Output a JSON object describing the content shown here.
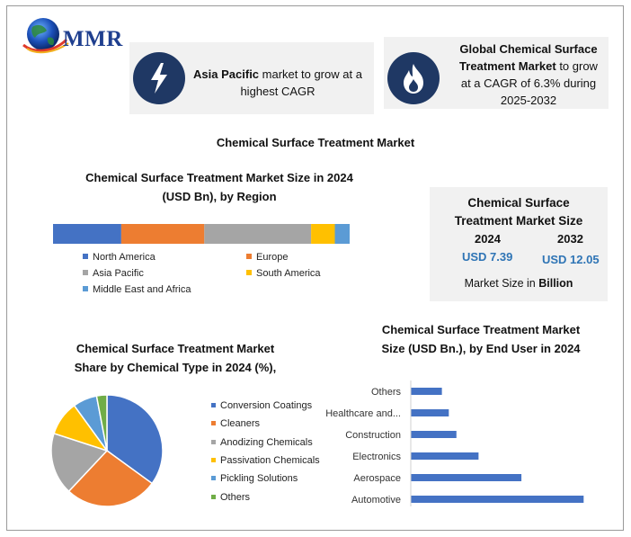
{
  "logo": {
    "text": "MMR"
  },
  "callout_left": {
    "bold": "Asia Pacific",
    "rest": " market to grow at a",
    "line2": "highest CAGR",
    "icon": "lightning-bolt-icon"
  },
  "callout_right": {
    "line1": "Global Chemical Surface",
    "line2_bold": "Treatment Market",
    "line2_rest": " to grow",
    "line3": "at a CAGR of 6.3% during",
    "line4": "2025-2032",
    "icon": "flame-icon"
  },
  "main_title": "Chemical Surface Treatment Market",
  "market_size": {
    "title_line1": "Chemical Surface",
    "title_line2": "Treatment Market Size",
    "year_a": "2024",
    "year_b": "2032",
    "value_a": "USD 7.39",
    "value_b": "USD 12.05",
    "unit_prefix": "Market Size in ",
    "unit_bold": "Billion"
  },
  "chart_data": [
    {
      "type": "bar",
      "orientation": "horizontal-stacked",
      "title": "Chemical Surface Treatment Market Size  in 2024 (USD Bn), by Region",
      "title_line1": "Chemical Surface Treatment Market Size  in 2024",
      "title_line2": "(USD Bn), by Region",
      "series": [
        {
          "name": "North America",
          "value": 0.23,
          "color": "#4472c4"
        },
        {
          "name": "Europe",
          "value": 0.28,
          "color": "#ed7d31"
        },
        {
          "name": "Asia Pacific",
          "value": 0.36,
          "color": "#a5a5a5"
        },
        {
          "name": "South America",
          "value": 0.08,
          "color": "#ffc000"
        },
        {
          "name": "Middle East and Africa",
          "value": 0.05,
          "color": "#5b9bd5"
        }
      ],
      "legend_placement": "bottom"
    },
    {
      "type": "pie",
      "title": "Chemical Surface Treatment Market Share by Chemical Type in 2024 (%),",
      "title_line1": "Chemical Surface Treatment Market",
      "title_line2": "Share by Chemical Type in 2024 (%),",
      "slices": [
        {
          "name": "Conversion Coatings",
          "value": 35,
          "color": "#4472c4"
        },
        {
          "name": "Cleaners",
          "value": 27,
          "color": "#ed7d31"
        },
        {
          "name": "Anodizing Chemicals",
          "value": 18,
          "color": "#a5a5a5"
        },
        {
          "name": "Passivation Chemicals",
          "value": 10,
          "color": "#ffc000"
        },
        {
          "name": "Pickling Solutions",
          "value": 7,
          "color": "#5b9bd5"
        },
        {
          "name": "Others",
          "value": 3,
          "color": "#70ad47"
        }
      ],
      "legend_placement": "right"
    },
    {
      "type": "bar",
      "orientation": "horizontal",
      "title": "Chemical Surface Treatment Market Size (USD Bn.), by  End User in 2024",
      "title_line1": "Chemical Surface Treatment Market",
      "title_line2": "Size (USD Bn.), by  End User in 2024",
      "categories": [
        "Others",
        "Healthcare and...",
        "Construction",
        "Electronics",
        "Aerospace",
        "Automotive"
      ],
      "values": [
        0.45,
        0.55,
        0.66,
        0.98,
        1.6,
        2.5
      ],
      "color": "#4472c4",
      "xlim": [
        0,
        2.6
      ],
      "grid": false
    }
  ]
}
